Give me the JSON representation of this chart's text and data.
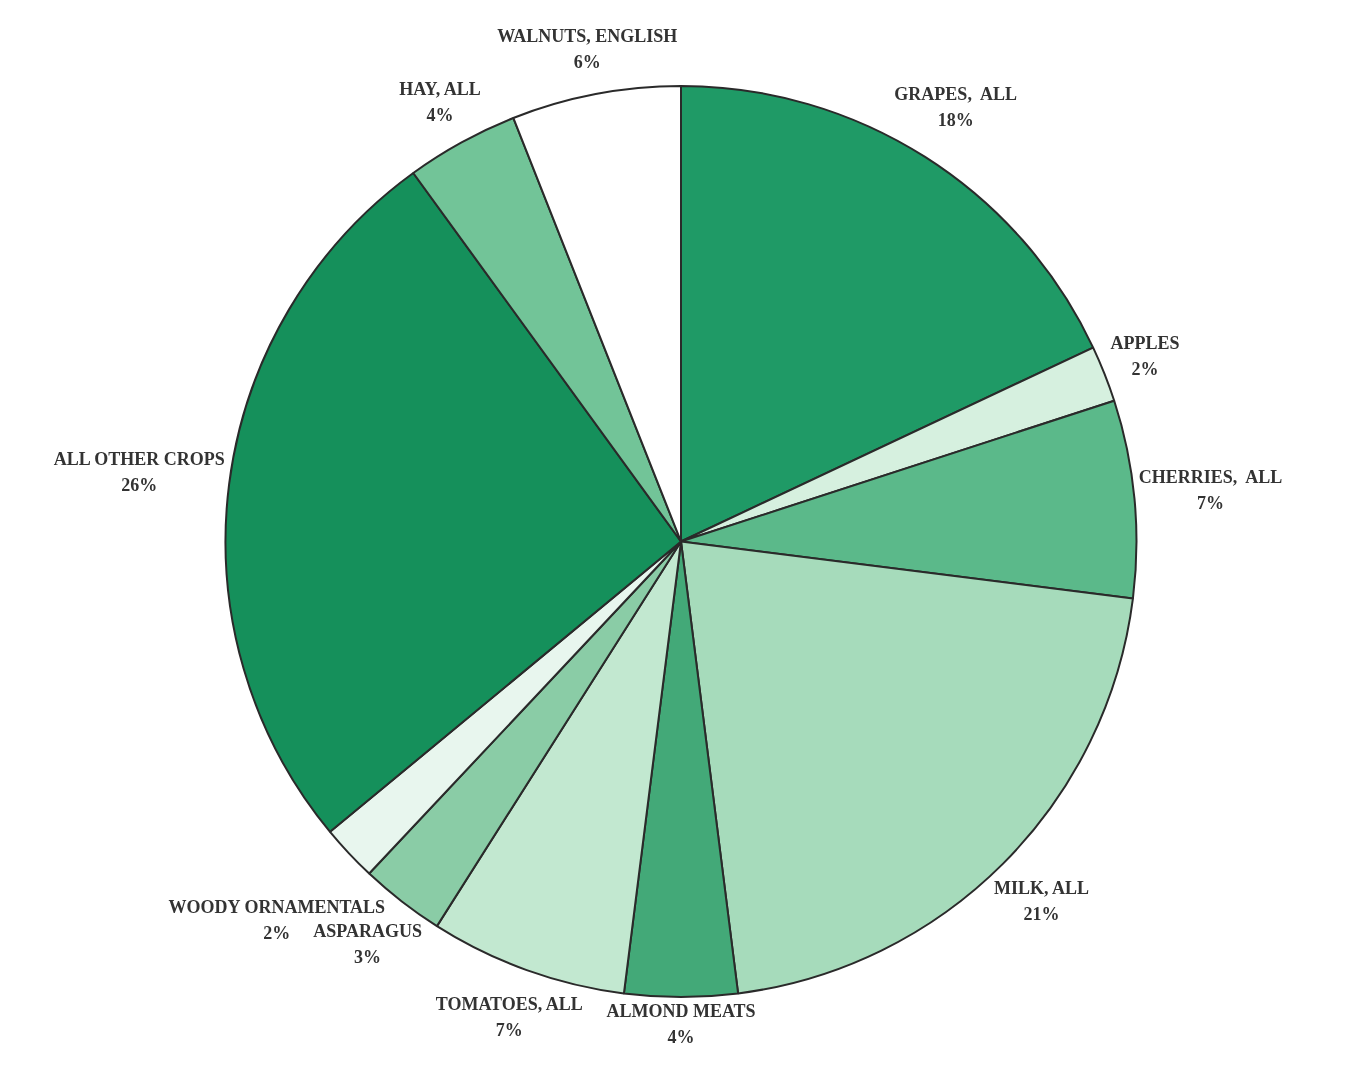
{
  "chart_data": {
    "type": "pie",
    "categories": [
      "GRAPES,  ALL",
      "APPLES",
      "CHERRIES,  ALL",
      "MILK, ALL",
      "ALMOND MEATS",
      "TOMATOES, ALL",
      "ASPARAGUS",
      "WOODY ORNAMENTALS",
      "ALL OTHER CROPS",
      "HAY, ALL",
      "WALNUTS, ENGLISH"
    ],
    "values": [
      18,
      2,
      7,
      21,
      4,
      7,
      3,
      2,
      26,
      4,
      6
    ],
    "value_labels": [
      "18%",
      "2%",
      "7%",
      "21%",
      "4%",
      "7%",
      "3%",
      "2%",
      "26%",
      "4%",
      "6%"
    ],
    "colors": [
      "#1f9a66",
      "#d6f0df",
      "#5bb98a",
      "#a6dbbb",
      "#43a978",
      "#c2e8d0",
      "#8acca6",
      "#e8f6ee",
      "#15905b",
      "#72c498",
      "#ffffff"
    ],
    "legend": false
  }
}
